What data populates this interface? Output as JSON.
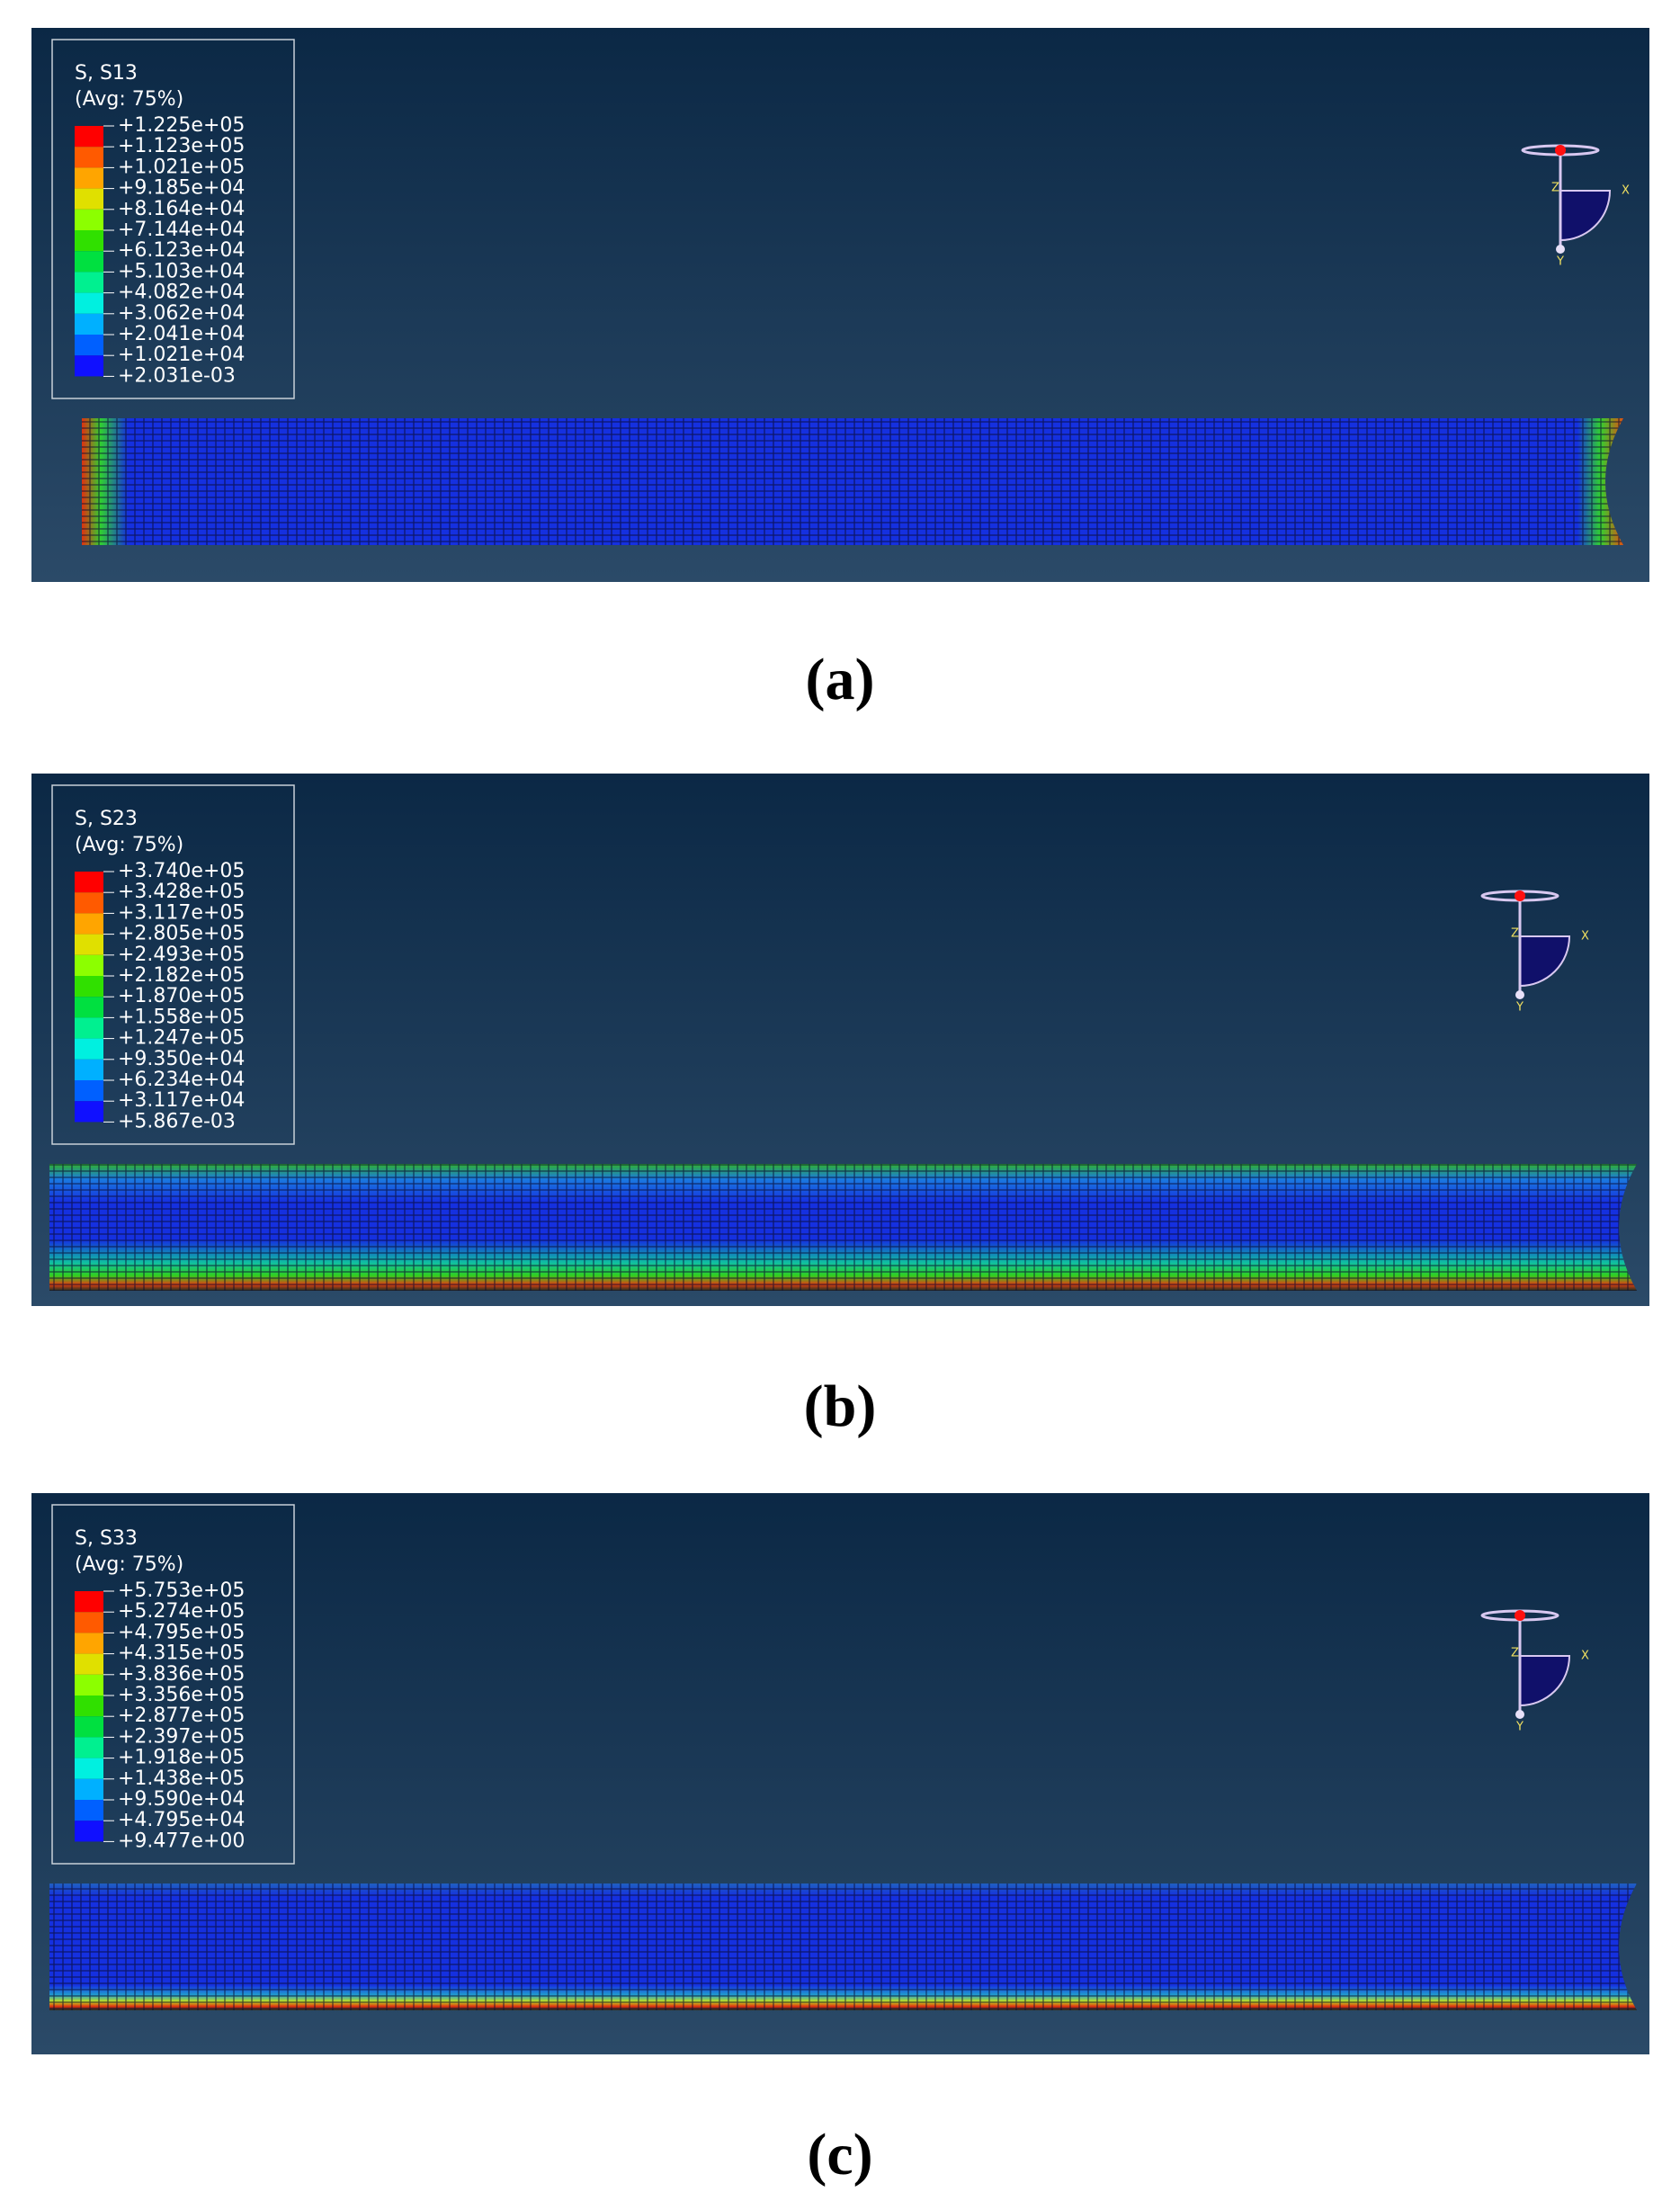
{
  "panels": [
    {
      "legend_title": "S, S13",
      "legend_avg": "(Avg: 75%)",
      "legend_values": [
        "+1.225e+05",
        "+1.123e+05",
        "+1.021e+05",
        "+9.185e+04",
        "+8.164e+04",
        "+7.144e+04",
        "+6.123e+04",
        "+5.103e+04",
        "+4.082e+04",
        "+3.062e+04",
        "+2.041e+04",
        "+1.021e+04",
        "+2.031e-03"
      ],
      "axes": [
        "Z",
        "X",
        "Y"
      ],
      "caption": "(a)"
    },
    {
      "legend_title": "S, S23",
      "legend_avg": "(Avg: 75%)",
      "legend_values": [
        "+3.740e+05",
        "+3.428e+05",
        "+3.117e+05",
        "+2.805e+05",
        "+2.493e+05",
        "+2.182e+05",
        "+1.870e+05",
        "+1.558e+05",
        "+1.247e+05",
        "+9.350e+04",
        "+6.234e+04",
        "+3.117e+04",
        "+5.867e-03"
      ],
      "axes": [
        "Z",
        "X",
        "Y"
      ],
      "caption": "(b)"
    },
    {
      "legend_title": "S, S33",
      "legend_avg": "(Avg: 75%)",
      "legend_values": [
        "+5.753e+05",
        "+5.274e+05",
        "+4.795e+05",
        "+4.315e+05",
        "+3.836e+05",
        "+3.356e+05",
        "+2.877e+05",
        "+2.397e+05",
        "+1.918e+05",
        "+1.438e+05",
        "+9.590e+04",
        "+4.795e+04",
        "+9.477e+00"
      ],
      "axes": [
        "Z",
        "X",
        "Y"
      ],
      "caption": "(c)"
    }
  ]
}
